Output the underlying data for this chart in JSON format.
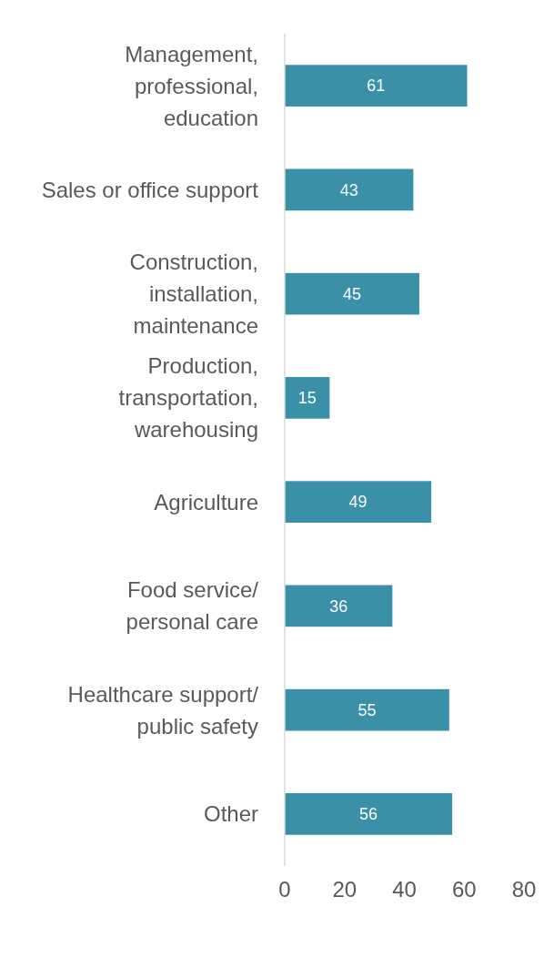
{
  "chart_data": {
    "type": "bar",
    "orientation": "horizontal",
    "categories": [
      "Management, professional, education",
      "Sales or office support",
      "Construction, installation, maintenance",
      "Production, transportation, warehousing",
      "Agriculture",
      "Food service/ personal care",
      "Healthcare support/ public safety",
      "Other"
    ],
    "values": [
      61,
      43,
      45,
      15,
      49,
      36,
      55,
      56
    ],
    "color": "#3a91a7",
    "xlim": [
      0,
      80
    ],
    "xticks": [
      0,
      20,
      40,
      60,
      80
    ],
    "data_labels": true
  }
}
